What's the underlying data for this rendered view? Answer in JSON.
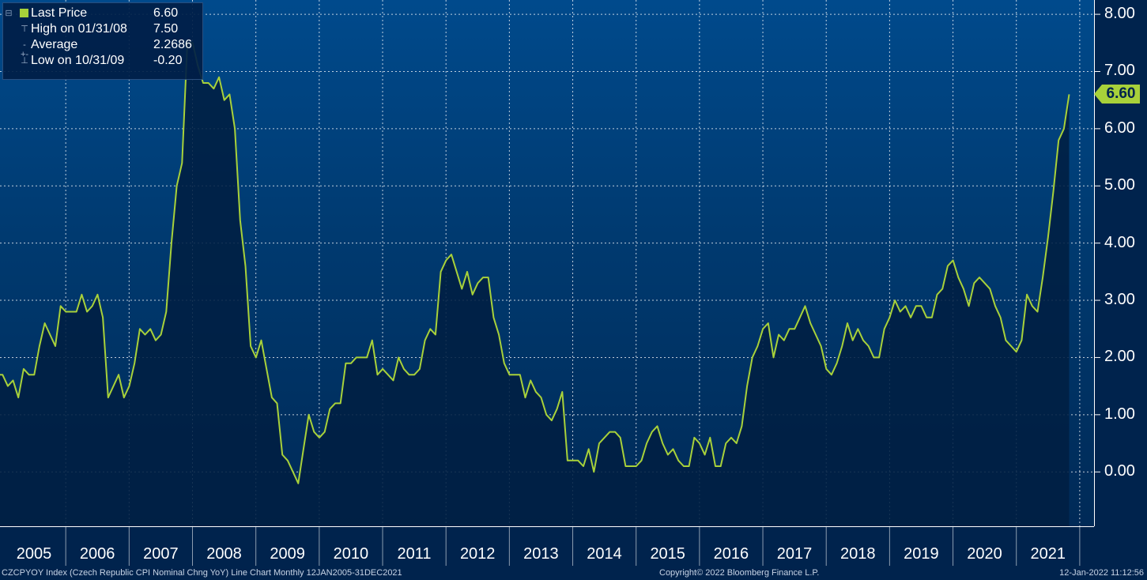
{
  "legend": {
    "last_price_label": "Last Price",
    "last_price_value": "6.60",
    "high_label": "High on 01/31/08",
    "high_value": "7.50",
    "average_label": "Average",
    "average_value": "2.2686",
    "low_label": "Low on 10/31/09",
    "low_value": "-0.20"
  },
  "last_value_tag": "6.60",
  "footer": {
    "left": "CZCPYOY Index (Czech Republic CPI Nominal Chng YoY) Line Chart  Monthly 12JAN2005-31DEC2021",
    "center": "Copyright© 2022 Bloomberg Finance L.P.",
    "right": "12-Jan-2022 11:12:56"
  },
  "colors": {
    "line": "#a8d13a",
    "background": "#00234d",
    "plot_top": "#004a8c",
    "area_fill": "#001f42",
    "grid": "#ffffff"
  },
  "chart_data": {
    "type": "area",
    "title": "",
    "xlabel": "",
    "ylabel": "",
    "ylim": [
      -0.95,
      8.25
    ],
    "x_start": "2005-01",
    "frequency": "Monthly",
    "grid": true,
    "legend_position": "top-left",
    "y_ticks": [
      "8.00",
      "7.00",
      "6.00",
      "5.00",
      "4.00",
      "3.00",
      "2.00",
      "1.00",
      "0.00"
    ],
    "x_tick_labels": [
      "2005",
      "2006",
      "2007",
      "2008",
      "2009",
      "2010",
      "2011",
      "2012",
      "2013",
      "2014",
      "2015",
      "2016",
      "2017",
      "2018",
      "2019",
      "2020",
      "2021"
    ],
    "series": [
      {
        "name": "Last Price",
        "values": [
          1.7,
          1.7,
          1.5,
          1.6,
          1.3,
          1.8,
          1.7,
          1.7,
          2.2,
          2.6,
          2.4,
          2.2,
          2.9,
          2.8,
          2.8,
          2.8,
          3.1,
          2.8,
          2.9,
          3.1,
          2.7,
          1.3,
          1.5,
          1.7,
          1.3,
          1.5,
          1.9,
          2.5,
          2.4,
          2.5,
          2.3,
          2.4,
          2.8,
          4.0,
          5.0,
          5.4,
          7.5,
          7.5,
          7.1,
          6.8,
          6.8,
          6.7,
          6.9,
          6.5,
          6.6,
          6.0,
          4.4,
          3.6,
          2.2,
          2.0,
          2.3,
          1.8,
          1.3,
          1.2,
          0.3,
          0.2,
          0.0,
          -0.2,
          0.4,
          1.0,
          0.7,
          0.6,
          0.7,
          1.1,
          1.2,
          1.2,
          1.9,
          1.9,
          2.0,
          2.0,
          2.0,
          2.3,
          1.7,
          1.8,
          1.7,
          1.6,
          2.0,
          1.8,
          1.7,
          1.7,
          1.8,
          2.3,
          2.5,
          2.4,
          3.5,
          3.7,
          3.8,
          3.5,
          3.2,
          3.5,
          3.1,
          3.3,
          3.4,
          3.4,
          2.7,
          2.4,
          1.9,
          1.7,
          1.7,
          1.7,
          1.3,
          1.6,
          1.4,
          1.3,
          1.0,
          0.9,
          1.1,
          1.4,
          0.2,
          0.2,
          0.2,
          0.1,
          0.4,
          0.0,
          0.5,
          0.6,
          0.7,
          0.7,
          0.6,
          0.1,
          0.1,
          0.1,
          0.2,
          0.5,
          0.7,
          0.8,
          0.5,
          0.3,
          0.4,
          0.2,
          0.1,
          0.1,
          0.6,
          0.5,
          0.3,
          0.6,
          0.1,
          0.1,
          0.5,
          0.6,
          0.5,
          0.8,
          1.5,
          2.0,
          2.2,
          2.5,
          2.6,
          2.0,
          2.4,
          2.3,
          2.5,
          2.5,
          2.7,
          2.9,
          2.6,
          2.4,
          2.2,
          1.8,
          1.7,
          1.9,
          2.2,
          2.6,
          2.3,
          2.5,
          2.3,
          2.2,
          2.0,
          2.0,
          2.5,
          2.7,
          3.0,
          2.8,
          2.9,
          2.7,
          2.9,
          2.9,
          2.7,
          2.7,
          3.1,
          3.2,
          3.6,
          3.7,
          3.4,
          3.2,
          2.9,
          3.3,
          3.4,
          3.3,
          3.2,
          2.9,
          2.7,
          2.3,
          2.2,
          2.1,
          2.3,
          3.1,
          2.9,
          2.8,
          3.4,
          4.1,
          4.9,
          5.8,
          6.0,
          6.6
        ]
      }
    ]
  }
}
